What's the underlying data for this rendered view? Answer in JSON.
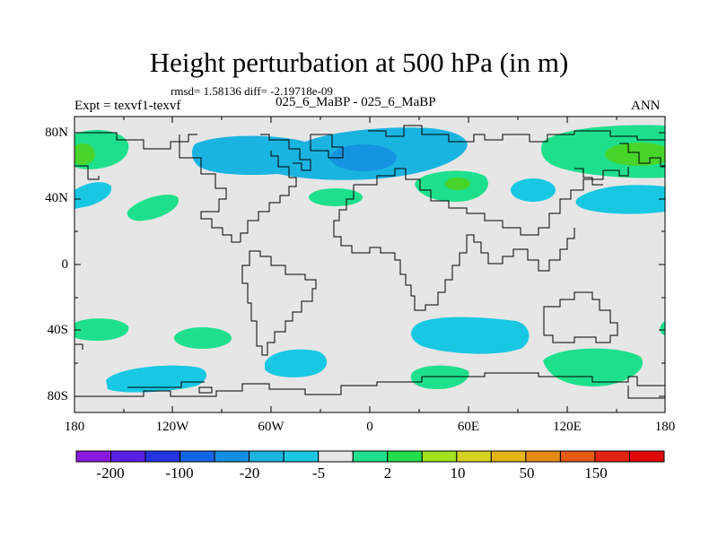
{
  "title": "Height perturbation at 500 hPa (in m)",
  "stats_line": "rmsd= 1.58136 diff= -2.19718e-09",
  "left_subtitle": "Expt = texvf1-texvf",
  "center_subtitle": "025_6_MaBP - 025_6_MaBP",
  "right_subtitle": "ANN",
  "lat_ticks": [
    "80N",
    "40N",
    "0",
    "40S",
    "80S"
  ],
  "lon_ticks": [
    "180",
    "120W",
    "60W",
    "0",
    "60E",
    "120E",
    "180"
  ],
  "colorbar": {
    "labels": [
      "-200",
      "-100",
      "-20",
      "-5",
      "2",
      "10",
      "50",
      "150"
    ],
    "colors": [
      "#8a1ae0",
      "#5a1ee6",
      "#2436e0",
      "#1464e6",
      "#128ee0",
      "#1ab4e0",
      "#18c8e2",
      "#e6e6e6",
      "#1ee08c",
      "#22de4a",
      "#a0e21e",
      "#d4d420",
      "#e4b414",
      "#e48a14",
      "#e45a12",
      "#e42410",
      "#e00808"
    ]
  },
  "colors": {
    "background": "#e6e6e6",
    "negative_light": "#18c8e2",
    "negative_mid": "#1ab4e0",
    "negative_strong": "#1494e0",
    "positive_light": "#1ee08c",
    "positive_mid": "#3ad84a",
    "positive_strong": "#48d42a"
  }
}
